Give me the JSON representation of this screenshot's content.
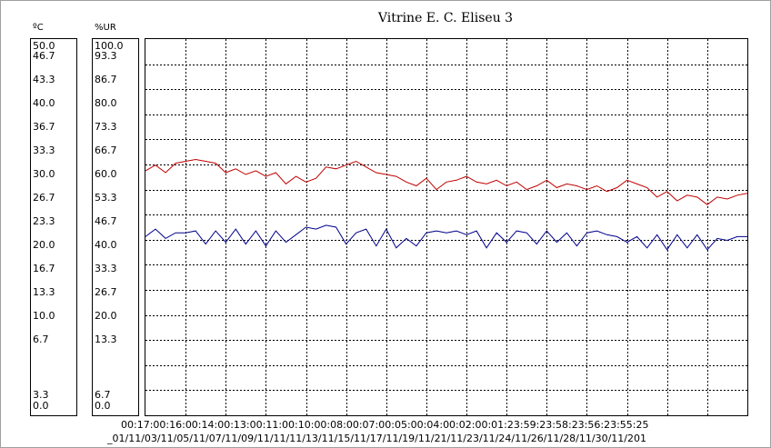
{
  "chart_data": {
    "type": "line",
    "title": "Vitrine E. C. Eliseu 3",
    "temp_axis": {
      "unit": "ºC",
      "ticks": [
        "50.0",
        "46.7",
        "43.3",
        "40.0",
        "36.7",
        "33.3",
        "30.0",
        "26.7",
        "23.3",
        "20.0",
        "16.7",
        "13.3",
        "10.0",
        "6.7",
        "3.3",
        "0.0"
      ],
      "ylim": [
        0,
        50
      ]
    },
    "rh_axis": {
      "unit": "%UR",
      "ticks": [
        "100.0",
        "93.3",
        "86.7",
        "80.0",
        "73.3",
        "66.7",
        "60.0",
        "53.3",
        "46.7",
        "40.0",
        "33.3",
        "26.7",
        "20.0",
        "13.3",
        "6.7",
        "0.0"
      ],
      "ylim": [
        0,
        100
      ]
    },
    "x_time_labels": "00:17:00:16:00:14:00:13:00:11:00:10:00:08:00:07:00:05:00:04:00:02:00:01:23:59:23:58:23:56:23:55:25",
    "x_date_labels": "_01/11/03/11/05/11/07/11/09/11/11/11/13/11/15/11/17/11/19/11/21/11/23/11/24/11/26/11/28/11/30/11/201",
    "x_time_ticks": [
      "00:17",
      "00:16",
      "00:14",
      "00:13",
      "00:11",
      "00:10",
      "00:08",
      "00:07",
      "00:05",
      "00:04",
      "00:02",
      "00:01",
      "23:59",
      "23:58",
      "23:56",
      "23:55"
    ],
    "x_date_ticks": [
      "01/11",
      "03/11",
      "05/11",
      "07/11",
      "09/11",
      "11/11",
      "13/11",
      "15/11",
      "17/11",
      "19/11",
      "21/11",
      "23/11",
      "24/11",
      "26/11",
      "28/11",
      "30/11"
    ],
    "grid": true,
    "series": [
      {
        "color": "#c00000",
        "x": [
          0,
          0.5,
          1,
          1.5,
          2,
          2.5,
          3,
          3.5,
          4,
          4.5,
          5,
          5.5,
          6,
          6.5,
          7,
          7.5,
          8,
          8.5,
          9,
          9.5,
          10,
          10.5,
          11,
          11.5,
          12,
          12.5,
          13,
          13.5,
          14,
          14.5,
          15,
          15.5,
          16,
          16.5,
          17,
          17.5,
          18,
          18.5,
          19,
          19.5,
          20,
          20.5,
          21,
          21.5,
          22,
          22.5,
          23,
          23.5,
          24,
          24.5,
          25,
          25.5,
          26,
          26.5,
          27,
          27.5,
          28,
          28.5,
          29,
          29.5,
          30
        ],
        "values": [
          65.0,
          66.5,
          64.5,
          67.0,
          67.5,
          68.0,
          67.5,
          67.0,
          64.5,
          65.5,
          64.0,
          65.0,
          63.5,
          64.5,
          61.5,
          63.5,
          62.0,
          63.0,
          66.0,
          65.5,
          66.5,
          67.5,
          66.0,
          64.5,
          64.0,
          63.5,
          62.0,
          61.0,
          63.0,
          60.0,
          62.0,
          62.5,
          63.5,
          62.0,
          61.5,
          62.5,
          61.0,
          62.0,
          60.0,
          61.0,
          62.5,
          60.5,
          61.5,
          61.0,
          60.0,
          61.0,
          59.5,
          60.5,
          62.5,
          61.5,
          60.5,
          58.0,
          59.5,
          57.0,
          58.5,
          58.0,
          56.0,
          58.0,
          57.5,
          58.5,
          59.0
        ]
      },
      {
        "color": "#00008b",
        "x": [
          0,
          0.5,
          1,
          1.5,
          2,
          2.5,
          3,
          3.5,
          4,
          4.5,
          5,
          5.5,
          6,
          6.5,
          7,
          7.5,
          8,
          8.5,
          9,
          9.5,
          10,
          10.5,
          11,
          11.5,
          12,
          12.5,
          13,
          13.5,
          14,
          14.5,
          15,
          15.5,
          16,
          16.5,
          17,
          17.5,
          18,
          18.5,
          19,
          19.5,
          20,
          20.5,
          21,
          21.5,
          22,
          22.5,
          23,
          23.5,
          24,
          24.5,
          25,
          25.5,
          26,
          26.5,
          27,
          27.5,
          28,
          28.5,
          29,
          29.5,
          30
        ],
        "values": [
          47.5,
          49.5,
          47.0,
          48.5,
          48.5,
          49.0,
          45.5,
          49.0,
          46.0,
          49.5,
          45.5,
          49.0,
          45.0,
          49.0,
          46.0,
          48.0,
          50.0,
          49.5,
          50.5,
          50.0,
          45.5,
          48.5,
          49.5,
          45.0,
          49.5,
          44.5,
          47.0,
          45.0,
          48.5,
          49.0,
          48.5,
          49.0,
          48.0,
          49.0,
          44.5,
          48.5,
          46.0,
          49.0,
          48.5,
          45.5,
          49.0,
          46.0,
          48.5,
          45.0,
          48.5,
          49.0,
          48.0,
          47.5,
          46.0,
          47.5,
          44.5,
          48.0,
          44.0,
          48.0,
          44.5,
          48.0,
          44.0,
          47.0,
          46.5,
          47.5,
          47.5
        ]
      }
    ]
  }
}
